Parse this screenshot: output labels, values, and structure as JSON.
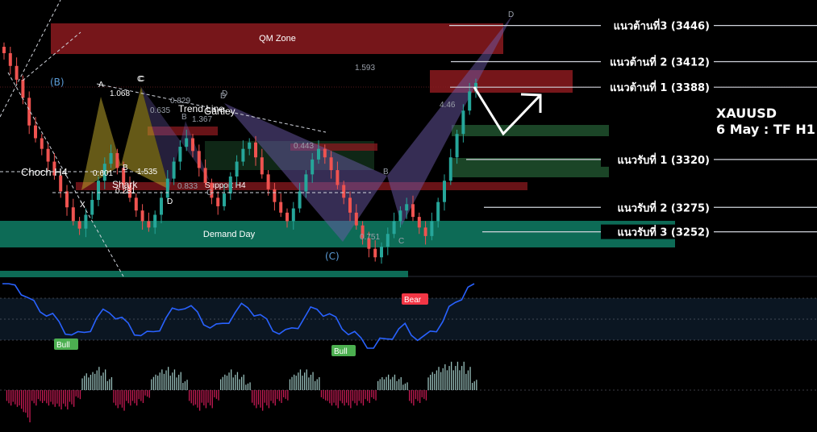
{
  "chart_data": {
    "type": "candlestick",
    "symbol": "XAUUSD",
    "timeframe": "6 May : TF H1",
    "colors": {
      "up": "#26a69a",
      "down": "#ef5350",
      "resistance_zone": "#8b1a1f",
      "support_zone": "#1e4d2b",
      "demand_zone": "#0d6b56",
      "rsi_line": "#2962ff",
      "pattern_fill": "#6b5aa8",
      "harmonic_fill": "#b8a32a"
    },
    "zones": {
      "qm": "QM Zone",
      "demand": "Demand Day",
      "support_h4": "Support H4",
      "choch": "Choch H4",
      "trend": "Trend Line",
      "gartley": "Gartley",
      "shark": "Shark"
    },
    "levels": [
      {
        "label": "แนวต้านที่3 (3446)",
        "price": 3446,
        "kind": "resistance"
      },
      {
        "label": "แนวต้านที่ 2 (3412)",
        "price": 3412,
        "kind": "resistance"
      },
      {
        "label": "แนวต้านที่ 1 (3388)",
        "price": 3388,
        "kind": "resistance"
      },
      {
        "label": "แนวรับที่ 1 (3320)",
        "price": 3320,
        "kind": "support"
      },
      {
        "label": "แนวรับที่ 2 (3275)",
        "price": 3275,
        "kind": "support"
      },
      {
        "label": "แนวรับที่ 3 (3252)",
        "price": 3252,
        "kind": "support"
      }
    ],
    "pattern_points": [
      "A",
      "B",
      "C",
      "D",
      "X",
      "B",
      "C",
      "D",
      "C",
      "D",
      "B",
      "C",
      "D"
    ],
    "ratios": [
      "1.068",
      "0.601",
      "1.535",
      "0.281",
      "0.635",
      "0.829",
      "1.367",
      "0.833",
      "0.443",
      "1.593",
      "0.751",
      "4.46"
    ],
    "wave_labels": [
      "(B)",
      "(C)"
    ],
    "rsi_tags": [
      "Bull",
      "Bull",
      "Bear"
    ],
    "close": [
      3420,
      3408,
      3395,
      3378,
      3352,
      3340,
      3330,
      3318,
      3305,
      3290,
      3275,
      3262,
      3255,
      3268,
      3282,
      3300,
      3316,
      3326,
      3312,
      3296,
      3284,
      3272,
      3262,
      3256,
      3268,
      3284,
      3302,
      3318,
      3332,
      3340,
      3328,
      3312,
      3298,
      3284,
      3276,
      3288,
      3304,
      3318,
      3330,
      3336,
      3322,
      3306,
      3292,
      3280,
      3270,
      3262,
      3274,
      3290,
      3306,
      3320,
      3330,
      3322,
      3310,
      3296,
      3284,
      3270,
      3258,
      3246,
      3236,
      3228,
      3238,
      3250,
      3262,
      3272,
      3278,
      3266,
      3256,
      3248,
      3262,
      3280,
      3300,
      3322,
      3344,
      3366,
      3384,
      3392
    ]
  }
}
